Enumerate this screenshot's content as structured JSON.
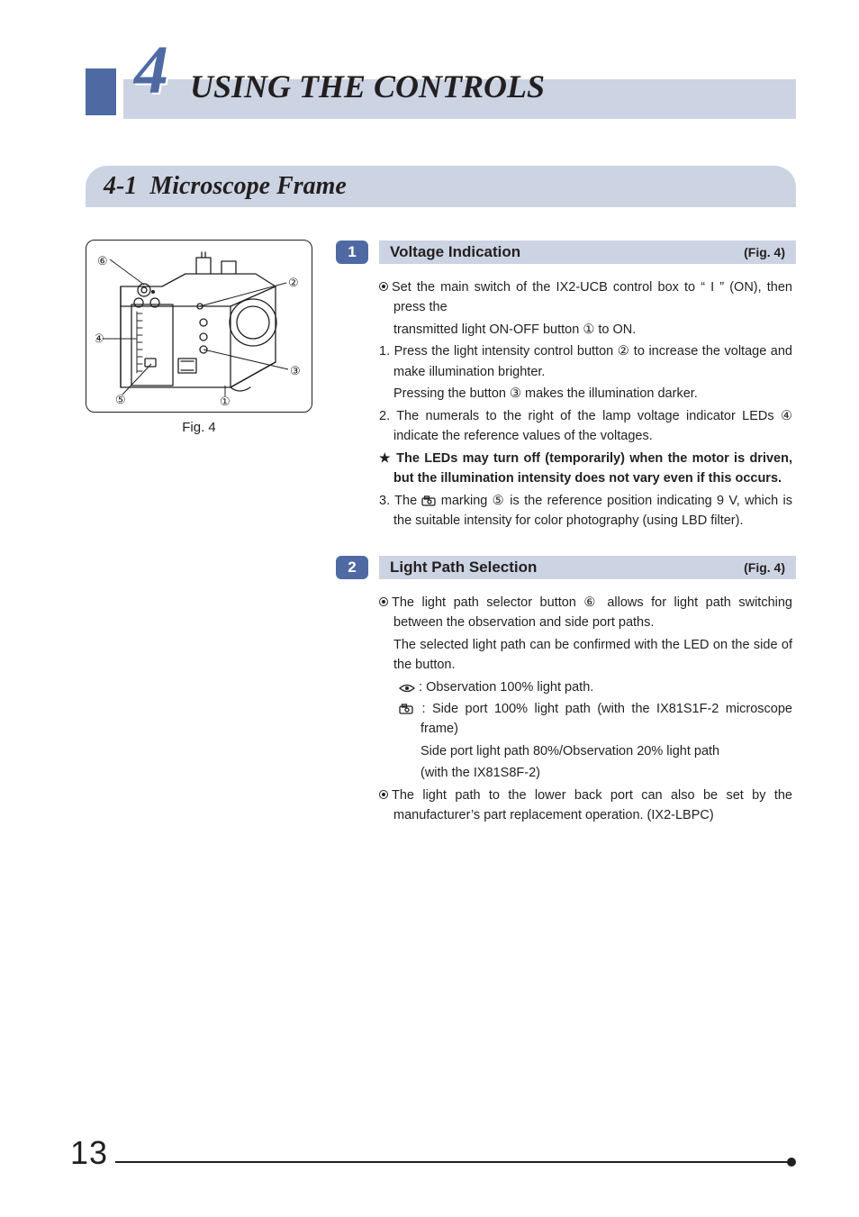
{
  "chapter": {
    "number": "4",
    "title": "USING THE CONTROLS"
  },
  "section": {
    "number": "4-1",
    "title": "Microscope Frame"
  },
  "figure": {
    "caption": "Fig. 4",
    "callouts": [
      "①",
      "②",
      "③",
      "④",
      "⑤",
      "⑥"
    ],
    "stroke": "#231f20",
    "bg": "#ffffff"
  },
  "items": [
    {
      "num": "1",
      "title": "Voltage Indication",
      "ref": "(Fig. 4)",
      "paras": [
        {
          "cls": "hang-dot",
          "html": "<span class='circmark'></span>Set the main switch of the IX2-UCB control box to “ <b>I</b> ” (ON), then press the"
        },
        {
          "cls": "sub",
          "html": "transmitted light ON-OFF button ① to ON."
        },
        {
          "cls": "hang",
          "html": "1. Press the light intensity control button ② to increase the voltage and make illumination brighter."
        },
        {
          "cls": "sub",
          "html": "Pressing the button ③ makes the illumination darker."
        },
        {
          "cls": "hang",
          "html": "2. The numerals to the right of the lamp voltage indicator LEDs ④ indicate the reference values of the voltages."
        },
        {
          "cls": "hang bold",
          "html": "<span class='star'>★</span> The LEDs may turn off (temporarily) when the motor is driven, but the illumination intensity does not vary even if this occurs."
        },
        {
          "cls": "hang",
          "html": "3. The <svg class='iconcam' width='16' height='12'><rect x='1' y='3' width='14' height='8' rx='1.5' fill='none' stroke='#231f20' stroke-width='1.3'/><rect x='3.5' y='1' width='5' height='3' fill='none' stroke='#231f20' stroke-width='1.3'/><circle cx='9' cy='7' r='2' fill='none' stroke='#231f20' stroke-width='1.3'/></svg> marking ⑤ is the reference position indicating 9 V, which is the suitable intensity for color photography (using LBD filter)."
        }
      ]
    },
    {
      "num": "2",
      "title": "Light Path Selection",
      "ref": "(Fig. 4)",
      "paras": [
        {
          "cls": "hang-dot",
          "html": "<span class='circmark'></span>The light path selector button ⑥ allows for light path switching between the observation and side port paths."
        },
        {
          "cls": "sub",
          "html": "The selected light path can be confirmed with the LED on the side of the button."
        },
        {
          "cls": "sub2-def",
          "html": "<svg class='iconeye' width='18' height='12'><path d='M1 6 Q9 -1 17 6 Q9 13 1 6 Z' fill='none' stroke='#231f20' stroke-width='1.3'/><circle cx='9' cy='6' r='2' fill='#231f20'/></svg> : Observation 100% light path."
        },
        {
          "cls": "sub2-def",
          "html": "<svg class='iconcam' width='18' height='12'><rect x='1' y='3' width='14' height='8' rx='1.5' fill='none' stroke='#231f20' stroke-width='1.3'/><rect x='3.5' y='1' width='5' height='3' fill='none' stroke='#231f20' stroke-width='1.3'/><circle cx='9' cy='7' r='2' fill='none' stroke='#231f20' stroke-width='1.3'/></svg> : Side port 100% light path (with the IX81S1F-2 microscope frame)"
        },
        {
          "cls": "sub2",
          "html": "Side port light path 80%/Observation 20% light path"
        },
        {
          "cls": "sub2",
          "html": "(with the IX81S8F-2)"
        },
        {
          "cls": "hang-dot",
          "html": "<span class='circmark'></span>The light path to the lower back port can also be set by the manufacturer’s part replacement operation. (IX2-LBPC)"
        }
      ]
    }
  ],
  "page_number": "13",
  "colors": {
    "accent": "#4f6aa3",
    "band": "#ccd3e2",
    "text": "#231f20",
    "bg": "#ffffff"
  }
}
